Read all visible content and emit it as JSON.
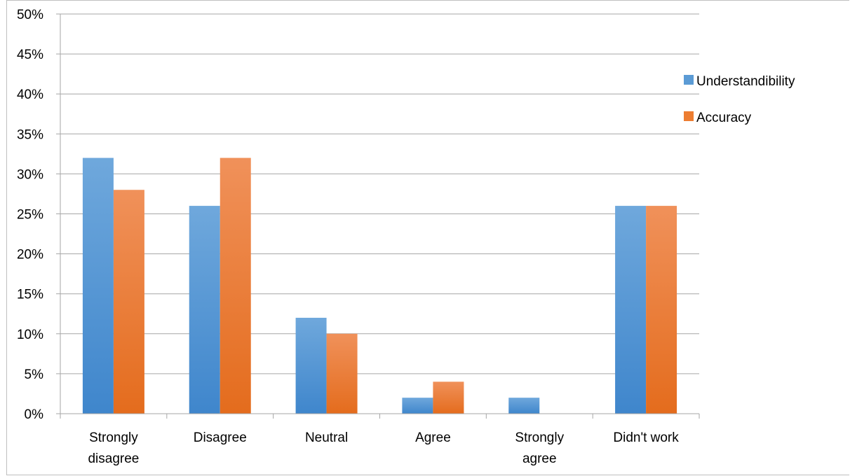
{
  "chart_data": {
    "type": "bar",
    "categories": [
      [
        "Strongly",
        "disagree"
      ],
      [
        "Disagree"
      ],
      [
        "Neutral"
      ],
      [
        "Agree"
      ],
      [
        "Strongly",
        "agree"
      ],
      [
        "Didn't work"
      ]
    ],
    "series": [
      {
        "name": "Understandibility",
        "values": [
          32,
          26,
          12,
          2,
          2,
          26
        ],
        "color": "#5b9bd5"
      },
      {
        "name": "Accuracy",
        "values": [
          28,
          32,
          10,
          4,
          0,
          26
        ],
        "color": "#ed7d31"
      }
    ],
    "ylim": [
      0,
      50
    ],
    "y_ticks": [
      "0%",
      "5%",
      "10%",
      "15%",
      "20%",
      "25%",
      "30%",
      "35%",
      "40%",
      "45%",
      "50%"
    ],
    "grid": true,
    "legend_position": "right"
  }
}
